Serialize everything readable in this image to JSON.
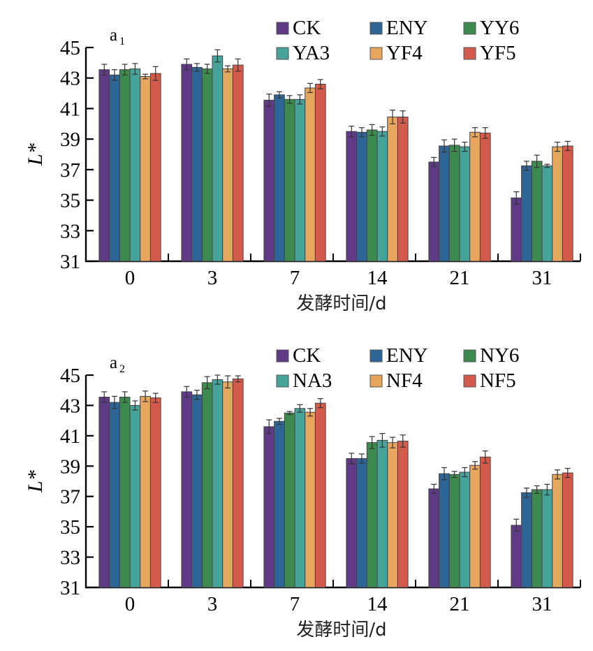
{
  "chart_data": [
    {
      "type": "bar",
      "panel_label": "a",
      "panel_subscript": "1",
      "categories": [
        "0",
        "3",
        "7",
        "14",
        "21",
        "31"
      ],
      "xlabel": "发酵时间/d",
      "ylabel": "L*",
      "ylim": [
        31,
        45
      ],
      "yticks": [
        "31",
        "33",
        "35",
        "37",
        "39",
        "41",
        "43",
        "45"
      ],
      "legend_position": "top-right",
      "series": [
        {
          "name": "CK",
          "color": "#5E3A87",
          "values": [
            43.55,
            43.9,
            41.55,
            39.5,
            37.5,
            35.15
          ],
          "errors": [
            0.35,
            0.35,
            0.4,
            0.35,
            0.3,
            0.4
          ]
        },
        {
          "name": "ENY",
          "color": "#2E6596",
          "values": [
            43.2,
            43.7,
            41.9,
            39.45,
            38.55,
            37.25
          ],
          "errors": [
            0.35,
            0.25,
            0.2,
            0.3,
            0.4,
            0.3
          ]
        },
        {
          "name": "YY6",
          "color": "#3C8A4E",
          "values": [
            43.55,
            43.6,
            41.6,
            39.6,
            38.6,
            37.55
          ],
          "errors": [
            0.35,
            0.3,
            0.25,
            0.35,
            0.4,
            0.4
          ]
        },
        {
          "name": "YA3",
          "color": "#45A39A",
          "values": [
            43.6,
            44.45,
            41.6,
            39.5,
            38.5,
            37.25
          ],
          "errors": [
            0.35,
            0.4,
            0.3,
            0.3,
            0.3,
            0.1
          ]
        },
        {
          "name": "YF4",
          "color": "#E8A55E",
          "values": [
            43.1,
            43.6,
            42.35,
            40.45,
            39.45,
            38.5
          ],
          "errors": [
            0.15,
            0.2,
            0.3,
            0.45,
            0.3,
            0.3
          ]
        },
        {
          "name": "YF5",
          "color": "#D45B4B",
          "values": [
            43.3,
            43.85,
            42.6,
            40.45,
            39.4,
            38.55
          ],
          "errors": [
            0.45,
            0.4,
            0.3,
            0.4,
            0.35,
            0.3
          ]
        }
      ]
    },
    {
      "type": "bar",
      "panel_label": "a",
      "panel_subscript": "2",
      "categories": [
        "0",
        "3",
        "7",
        "14",
        "21",
        "31"
      ],
      "xlabel": "发酵时间/d",
      "ylabel": "L*",
      "ylim": [
        31,
        45
      ],
      "yticks": [
        "31",
        "33",
        "35",
        "37",
        "39",
        "41",
        "43",
        "45"
      ],
      "legend_position": "top-right",
      "series": [
        {
          "name": "CK",
          "color": "#5E3A87",
          "values": [
            43.55,
            43.9,
            41.6,
            39.5,
            37.5,
            35.1
          ],
          "errors": [
            0.35,
            0.35,
            0.45,
            0.35,
            0.3,
            0.4
          ]
        },
        {
          "name": "ENY",
          "color": "#2E6596",
          "values": [
            43.2,
            43.7,
            41.95,
            39.5,
            38.5,
            37.25
          ],
          "errors": [
            0.4,
            0.3,
            0.2,
            0.3,
            0.4,
            0.3
          ]
        },
        {
          "name": "NY6",
          "color": "#3C8A4E",
          "values": [
            43.55,
            44.5,
            42.5,
            40.55,
            38.45,
            37.45
          ],
          "errors": [
            0.35,
            0.4,
            0.1,
            0.4,
            0.2,
            0.25
          ]
        },
        {
          "name": "NA3",
          "color": "#45A39A",
          "values": [
            43.0,
            44.7,
            42.8,
            40.7,
            38.6,
            37.45
          ],
          "errors": [
            0.3,
            0.3,
            0.25,
            0.45,
            0.3,
            0.35
          ]
        },
        {
          "name": "NF4",
          "color": "#E8A55E",
          "values": [
            43.6,
            44.55,
            42.55,
            40.55,
            39.05,
            38.45
          ],
          "errors": [
            0.35,
            0.4,
            0.25,
            0.35,
            0.25,
            0.3
          ]
        },
        {
          "name": "NF5",
          "color": "#D45B4B",
          "values": [
            43.5,
            44.75,
            43.15,
            40.65,
            39.6,
            38.55
          ],
          "errors": [
            0.3,
            0.2,
            0.3,
            0.4,
            0.4,
            0.3
          ]
        }
      ]
    }
  ]
}
